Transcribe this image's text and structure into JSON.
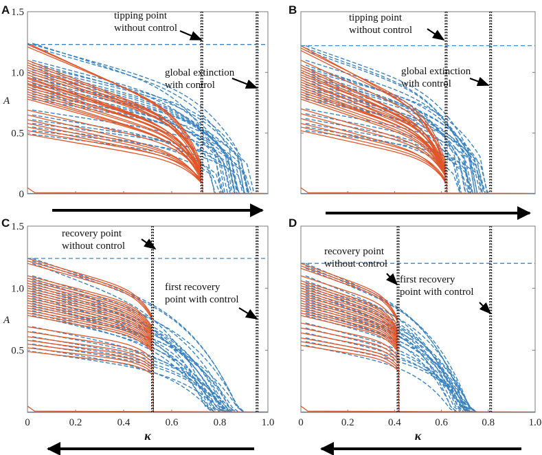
{
  "colors": {
    "controlled": "#e0572a",
    "uncontrolled": "#3b83c0",
    "marker": "#000000"
  },
  "chart_data": [
    {
      "panel": "A",
      "type": "line",
      "direction": "forward",
      "xlim": [
        0,
        1.0
      ],
      "ylim": [
        0,
        1.5
      ],
      "yticks": [
        "0",
        "0.5",
        "1.0",
        "1.5"
      ],
      "xticks": [],
      "ylabel": "A",
      "xlabel": "",
      "reference_level": 1.23,
      "tipping": 0.725,
      "end": 0.955,
      "vlines": [
        0.725,
        0.955
      ],
      "series_start_values": [
        1.24,
        1.23,
        1.21,
        1.1,
        1.08,
        1.06,
        1.04,
        1.02,
        1.0,
        0.98,
        0.96,
        0.95,
        0.93,
        0.91,
        0.9,
        0.88,
        0.86,
        0.84,
        0.82,
        0.8,
        0.78,
        0.69,
        0.65,
        0.61,
        0.58,
        0.55,
        0.52,
        0.49
      ],
      "annotations": [
        {
          "lines": [
            "tipping point",
            "without control"
          ]
        },
        {
          "lines": [
            "global extinction",
            "with control"
          ]
        }
      ],
      "arrow": "right"
    },
    {
      "panel": "B",
      "type": "line",
      "direction": "forward",
      "xlim": [
        0,
        1.0
      ],
      "ylim": [
        0,
        1.5
      ],
      "yticks": [],
      "xticks": [],
      "ylabel": "",
      "xlabel": "",
      "reference_level": 1.22,
      "tipping": 0.62,
      "end": 0.81,
      "vlines": [
        0.62,
        0.81
      ],
      "series_start_values": [
        1.22,
        1.2,
        1.18,
        1.1,
        1.06,
        1.04,
        1.02,
        1.0,
        0.98,
        0.96,
        0.94,
        0.92,
        0.9,
        0.88,
        0.86,
        0.84,
        0.82,
        0.8,
        0.78,
        0.7,
        0.66,
        0.62,
        0.58,
        0.55,
        0.52
      ],
      "annotations": [
        {
          "lines": [
            "tipping point",
            "without control"
          ]
        },
        {
          "lines": [
            "global extinction",
            "with control"
          ]
        }
      ],
      "arrow": "right"
    },
    {
      "panel": "C",
      "type": "line",
      "direction": "backward",
      "xlim": [
        0,
        1.0
      ],
      "ylim": [
        0,
        1.5
      ],
      "yticks": [
        "0.5",
        "1.0",
        "1.5"
      ],
      "xticks": [
        "0",
        "0.2",
        "0.4",
        "0.6",
        "0.8",
        "1.0"
      ],
      "ylabel": "A",
      "xlabel": "κ",
      "reference_level": 1.24,
      "tipping": 0.52,
      "end": 0.955,
      "vlines": [
        0.52,
        0.955
      ],
      "series_start_values": [
        1.24,
        1.22,
        1.2,
        1.1,
        1.08,
        1.06,
        1.04,
        1.02,
        1.0,
        0.98,
        0.96,
        0.94,
        0.92,
        0.9,
        0.88,
        0.86,
        0.84,
        0.82,
        0.8,
        0.78,
        0.69,
        0.65,
        0.61,
        0.58,
        0.55,
        0.52,
        0.49
      ],
      "annotations": [
        {
          "lines": [
            "recovery point",
            "without control"
          ]
        },
        {
          "lines": [
            "first recovery",
            "point with control"
          ]
        }
      ],
      "arrow": "left"
    },
    {
      "panel": "D",
      "type": "line",
      "direction": "backward",
      "xlim": [
        0,
        1.0
      ],
      "ylim": [
        0,
        1.5
      ],
      "yticks": [],
      "xticks": [
        "0",
        "0.2",
        "0.4",
        "0.6",
        "0.8",
        "1.0"
      ],
      "ylabel": "",
      "xlabel": "κ",
      "reference_level": 1.2,
      "tipping": 0.415,
      "end": 0.81,
      "vlines": [
        0.415,
        0.81
      ],
      "series_start_values": [
        1.2,
        1.18,
        1.16,
        1.1,
        1.06,
        1.04,
        1.02,
        1.0,
        0.98,
        0.96,
        0.94,
        0.92,
        0.9,
        0.88,
        0.86,
        0.84,
        0.82,
        0.8,
        0.78,
        0.72,
        0.68,
        0.64,
        0.6,
        0.57,
        0.54
      ],
      "annotations": [
        {
          "lines": [
            "recovery point",
            "without control"
          ]
        },
        {
          "lines": [
            "first recovery",
            "point with control"
          ]
        }
      ],
      "arrow": "left"
    }
  ]
}
